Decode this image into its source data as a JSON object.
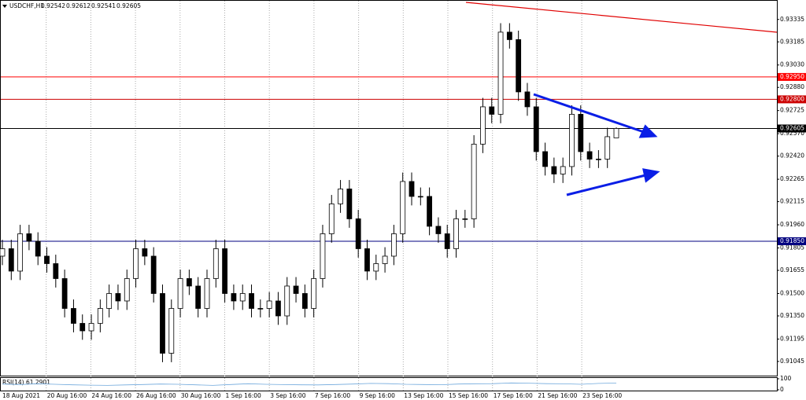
{
  "chart_data": [
    {
      "type": "candlestick",
      "symbol": "USDCHF,H1",
      "color": "#000000",
      "open": [
        0.9175,
        0.918,
        0.9165,
        0.919,
        0.9185,
        0.9175,
        0.917,
        0.916,
        0.914,
        0.913,
        0.9125,
        0.913,
        0.914,
        0.915,
        0.9145,
        0.916,
        0.918,
        0.9175,
        0.915,
        0.911,
        0.914,
        0.916,
        0.9155,
        0.914,
        0.916,
        0.918,
        0.915,
        0.9145,
        0.915,
        0.914,
        0.914,
        0.9145,
        0.9135,
        0.9155,
        0.915,
        0.914,
        0.916,
        0.919,
        0.921,
        0.922,
        0.92,
        0.918,
        0.9165,
        0.917,
        0.9175,
        0.919,
        0.9225,
        0.9215,
        0.9215,
        0.9195,
        0.919,
        0.918,
        0.92,
        0.92,
        0.925,
        0.9275,
        0.927,
        0.9325,
        0.932,
        0.9285,
        0.9275,
        0.9245,
        0.9235,
        0.923,
        0.9235,
        0.927,
        0.9245,
        0.924,
        0.924,
        0.92542
      ],
      "high": [
        0.9186,
        0.9186,
        0.9196,
        0.9196,
        0.9191,
        0.9181,
        0.9176,
        0.9166,
        0.9146,
        0.9136,
        0.9136,
        0.9146,
        0.9156,
        0.9156,
        0.9166,
        0.9186,
        0.9186,
        0.9181,
        0.9156,
        0.9146,
        0.9166,
        0.9166,
        0.9161,
        0.9166,
        0.9186,
        0.9186,
        0.9156,
        0.9156,
        0.9156,
        0.9146,
        0.9151,
        0.9151,
        0.9161,
        0.9161,
        0.9156,
        0.9166,
        0.9196,
        0.9216,
        0.9226,
        0.9226,
        0.9206,
        0.9186,
        0.9176,
        0.9181,
        0.9196,
        0.9231,
        0.9231,
        0.9221,
        0.9221,
        0.9201,
        0.9196,
        0.9206,
        0.9206,
        0.9256,
        0.9281,
        0.9281,
        0.9331,
        0.9331,
        0.9326,
        0.9291,
        0.9281,
        0.9251,
        0.9241,
        0.9241,
        0.9276,
        0.9276,
        0.9251,
        0.9246,
        0.9261,
        0.92612
      ],
      "low": [
        0.9169,
        0.9159,
        0.9159,
        0.9179,
        0.9169,
        0.9164,
        0.9154,
        0.9134,
        0.9124,
        0.9119,
        0.9119,
        0.9124,
        0.9134,
        0.9139,
        0.9139,
        0.9154,
        0.9169,
        0.9144,
        0.9104,
        0.9104,
        0.9134,
        0.9149,
        0.9134,
        0.9134,
        0.9154,
        0.9144,
        0.9139,
        0.9139,
        0.9134,
        0.9134,
        0.9134,
        0.9129,
        0.9129,
        0.9144,
        0.9134,
        0.9134,
        0.9154,
        0.9184,
        0.9204,
        0.9194,
        0.9174,
        0.9159,
        0.9159,
        0.9164,
        0.9169,
        0.9184,
        0.9209,
        0.9209,
        0.9189,
        0.9184,
        0.9174,
        0.9174,
        0.9194,
        0.9194,
        0.9244,
        0.9264,
        0.9264,
        0.9314,
        0.9279,
        0.9269,
        0.9239,
        0.9229,
        0.9224,
        0.9224,
        0.9229,
        0.9239,
        0.9234,
        0.9234,
        0.9234,
        0.92541
      ],
      "close": [
        0.918,
        0.9165,
        0.919,
        0.9185,
        0.9175,
        0.917,
        0.916,
        0.914,
        0.913,
        0.9125,
        0.913,
        0.914,
        0.915,
        0.9145,
        0.916,
        0.918,
        0.9175,
        0.915,
        0.911,
        0.914,
        0.916,
        0.9155,
        0.914,
        0.916,
        0.918,
        0.915,
        0.9145,
        0.915,
        0.914,
        0.914,
        0.9145,
        0.9135,
        0.9155,
        0.915,
        0.914,
        0.916,
        0.919,
        0.921,
        0.922,
        0.92,
        0.918,
        0.9165,
        0.917,
        0.9175,
        0.919,
        0.9225,
        0.9215,
        0.9215,
        0.9195,
        0.919,
        0.918,
        0.92,
        0.92,
        0.925,
        0.9275,
        0.927,
        0.9325,
        0.932,
        0.9285,
        0.9275,
        0.9245,
        0.9235,
        0.923,
        0.9235,
        0.927,
        0.9245,
        0.924,
        0.924,
        0.9255,
        0.92605
      ],
      "ylim": [
        0.9095,
        0.9346
      ],
      "yticks": [
        0.93335,
        0.93185,
        {
          "value": 0.9303,
          "label": "0.93030"
        },
        {
          "value": 0.9288,
          "label": "0.92880"
        },
        0.92725,
        {
          "value": 0.9257,
          "label": "0.92570"
        },
        {
          "value": 0.9242,
          "label": "0.92420"
        },
        0.92265,
        0.92115,
        {
          "value": 0.9196,
          "label": "0.91960"
        },
        0.91805,
        0.91655,
        {
          "value": 0.915,
          "label": "0.91500"
        },
        {
          "value": 0.9135,
          "label": "0.91350"
        },
        0.91195,
        0.91045
      ],
      "levels": [
        {
          "value": 0.9295,
          "label": "0.92950",
          "color": "#ff0000"
        },
        {
          "value": 0.928,
          "label": "0.92800",
          "color": "#cc0000"
        },
        {
          "value": 0.92605,
          "label": "0.92605",
          "color": "#000000"
        },
        {
          "value": 0.9185,
          "label": "0.91850",
          "color": "#000080"
        }
      ],
      "x_labels": [
        "18 Aug 2021",
        "20 Aug 16:00",
        "24 Aug 16:00",
        "26 Aug 16:00",
        "30 Aug 16:00",
        "1 Sep 16:00",
        "3 Sep 16:00",
        "7 Sep 16:00",
        "9 Sep 16:00",
        "13 Sep 16:00",
        "15 Sep 16:00",
        "17 Sep 16:00",
        "21 Sep 16:00",
        "23 Sep 16:00"
      ],
      "grid": true
    },
    {
      "type": "line",
      "title": "RSI(14) 61.2901",
      "color": "#6fa8dc",
      "values": [
        52,
        48,
        55,
        50,
        45,
        42,
        40,
        44,
        48,
        52,
        50,
        45,
        40,
        48,
        55,
        50,
        47,
        45,
        44,
        48,
        52,
        58,
        56,
        50,
        48,
        46,
        52,
        55,
        56,
        62,
        60,
        56,
        54,
        50,
        58,
        61.2901
      ],
      "ylim": [
        0,
        100
      ],
      "yticks": [
        100,
        0
      ]
    }
  ]
}
